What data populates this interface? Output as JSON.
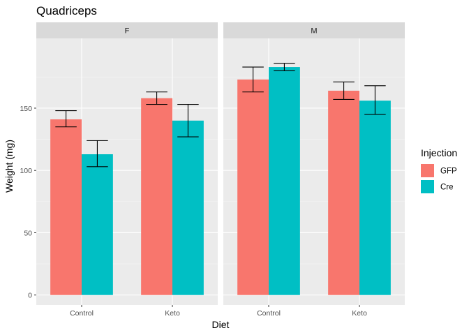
{
  "chart_data": {
    "type": "bar",
    "title": "Quadriceps",
    "xlabel": "Diet",
    "ylabel": "Weight (mg)",
    "ylim": [
      -8,
      206
    ],
    "yticks": [
      0,
      50,
      100,
      150
    ],
    "categories": [
      "Control",
      "Keto"
    ],
    "grid": true,
    "legend": {
      "title": "Injection",
      "position": "right",
      "entries": [
        {
          "name": "GFP",
          "color": "#F8766D"
        },
        {
          "name": "Cre",
          "color": "#00BFC4"
        }
      ]
    },
    "panels": [
      {
        "label": "F",
        "series": [
          {
            "name": "GFP",
            "values": [
              141,
              158
            ],
            "error_low": [
              135,
              153
            ],
            "error_high": [
              148,
              163
            ]
          },
          {
            "name": "Cre",
            "values": [
              113,
              140
            ],
            "error_low": [
              103,
              127
            ],
            "error_high": [
              124,
              153
            ]
          }
        ]
      },
      {
        "label": "M",
        "series": [
          {
            "name": "GFP",
            "values": [
              173,
              164
            ],
            "error_low": [
              163,
              157
            ],
            "error_high": [
              183,
              171
            ]
          },
          {
            "name": "Cre",
            "values": [
              183,
              156
            ],
            "error_low": [
              180,
              145
            ],
            "error_high": [
              186,
              168
            ]
          }
        ]
      }
    ]
  }
}
